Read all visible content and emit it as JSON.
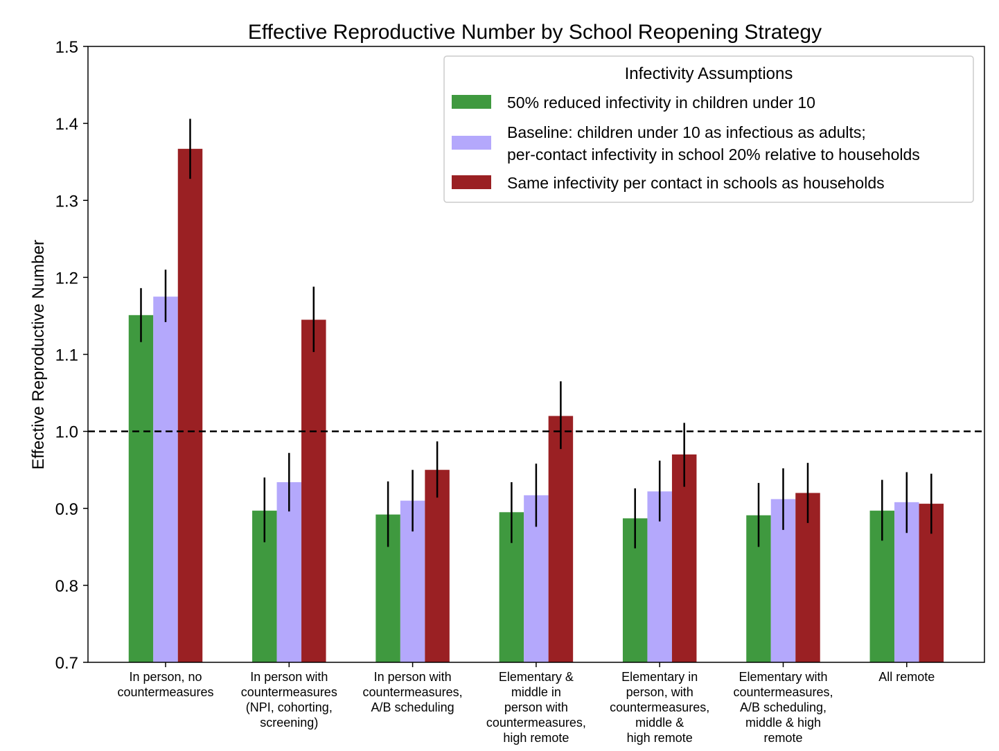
{
  "chart_data": {
    "type": "bar",
    "title": "Effective Reproductive Number by School Reopening Strategy",
    "xlabel": "",
    "ylabel": "Effective Reproductive Number",
    "ylim": [
      0.7,
      1.5
    ],
    "yticks": [
      "0.7",
      "0.8",
      "0.9",
      "1.0",
      "1.1",
      "1.2",
      "1.3",
      "1.4",
      "1.5"
    ],
    "reference_line": {
      "y": 1.0,
      "style": "dashed",
      "color": "#000000"
    },
    "grid": false,
    "legend": {
      "title": "Infectivity Assumptions",
      "placement": "top-right"
    },
    "categories": [
      [
        "In person, no",
        "countermeasures"
      ],
      [
        "In person with",
        "countermeasures",
        "(NPI, cohorting,",
        "screening)"
      ],
      [
        "In person with",
        "countermeasures,",
        "A/B scheduling"
      ],
      [
        "Elementary &",
        "middle in",
        "person with",
        "countermeasures,",
        "high remote"
      ],
      [
        "Elementary in",
        "person, with",
        "countermeasures,",
        "middle &",
        "high remote"
      ],
      [
        "Elementary with",
        "countermeasures,",
        "A/B scheduling,",
        "middle & high",
        "remote"
      ],
      [
        "All remote"
      ]
    ],
    "series": [
      {
        "name_lines": [
          "50% reduced infectivity in children under 10"
        ],
        "color": "#3f993f",
        "values": [
          1.151,
          0.897,
          0.892,
          0.895,
          0.887,
          0.891,
          0.897
        ],
        "err_low": [
          1.116,
          0.856,
          0.85,
          0.855,
          0.848,
          0.85,
          0.858
        ],
        "err_high": [
          1.186,
          0.94,
          0.935,
          0.934,
          0.926,
          0.933,
          0.937
        ]
      },
      {
        "name_lines": [
          "Baseline: children under 10 as infectious as adults;",
          "per-contact infectivity in school 20% relative to households"
        ],
        "color": "#b4a8fc",
        "values": [
          1.175,
          0.934,
          0.91,
          0.917,
          0.922,
          0.912,
          0.908
        ],
        "err_low": [
          1.142,
          0.896,
          0.87,
          0.876,
          0.883,
          0.872,
          0.868
        ],
        "err_high": [
          1.21,
          0.972,
          0.95,
          0.958,
          0.962,
          0.952,
          0.947
        ]
      },
      {
        "name_lines": [
          "Same infectivity per contact in schools as households"
        ],
        "color": "#9a2023",
        "values": [
          1.367,
          1.145,
          0.95,
          1.02,
          0.97,
          0.92,
          0.906
        ],
        "err_low": [
          1.328,
          1.103,
          0.914,
          0.977,
          0.928,
          0.881,
          0.867
        ],
        "err_high": [
          1.406,
          1.188,
          0.987,
          1.065,
          1.011,
          0.959,
          0.945
        ]
      }
    ]
  }
}
